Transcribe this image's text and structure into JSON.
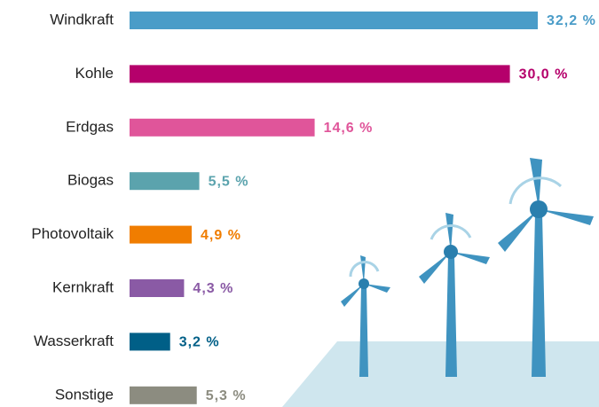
{
  "chart_data": {
    "type": "bar",
    "orientation": "horizontal",
    "categories": [
      "Windkraft",
      "Kohle",
      "Erdgas",
      "Biogas",
      "Photovoltaik",
      "Kernkraft",
      "Wasserkraft",
      "Sonstige"
    ],
    "values": [
      32.2,
      30.0,
      14.6,
      5.5,
      4.9,
      4.3,
      3.2,
      5.3
    ],
    "value_labels": [
      "32,2 %",
      "30,0 %",
      "14,6 %",
      "5,5 %",
      "4,9 %",
      "4,3 %",
      "3,2 %",
      "5,3 %"
    ],
    "colors": [
      "#4a9cc8",
      "#b5006b",
      "#e0559a",
      "#5ba3ad",
      "#f07d00",
      "#8a5aa5",
      "#005f87",
      "#8c8c80"
    ]
  }
}
